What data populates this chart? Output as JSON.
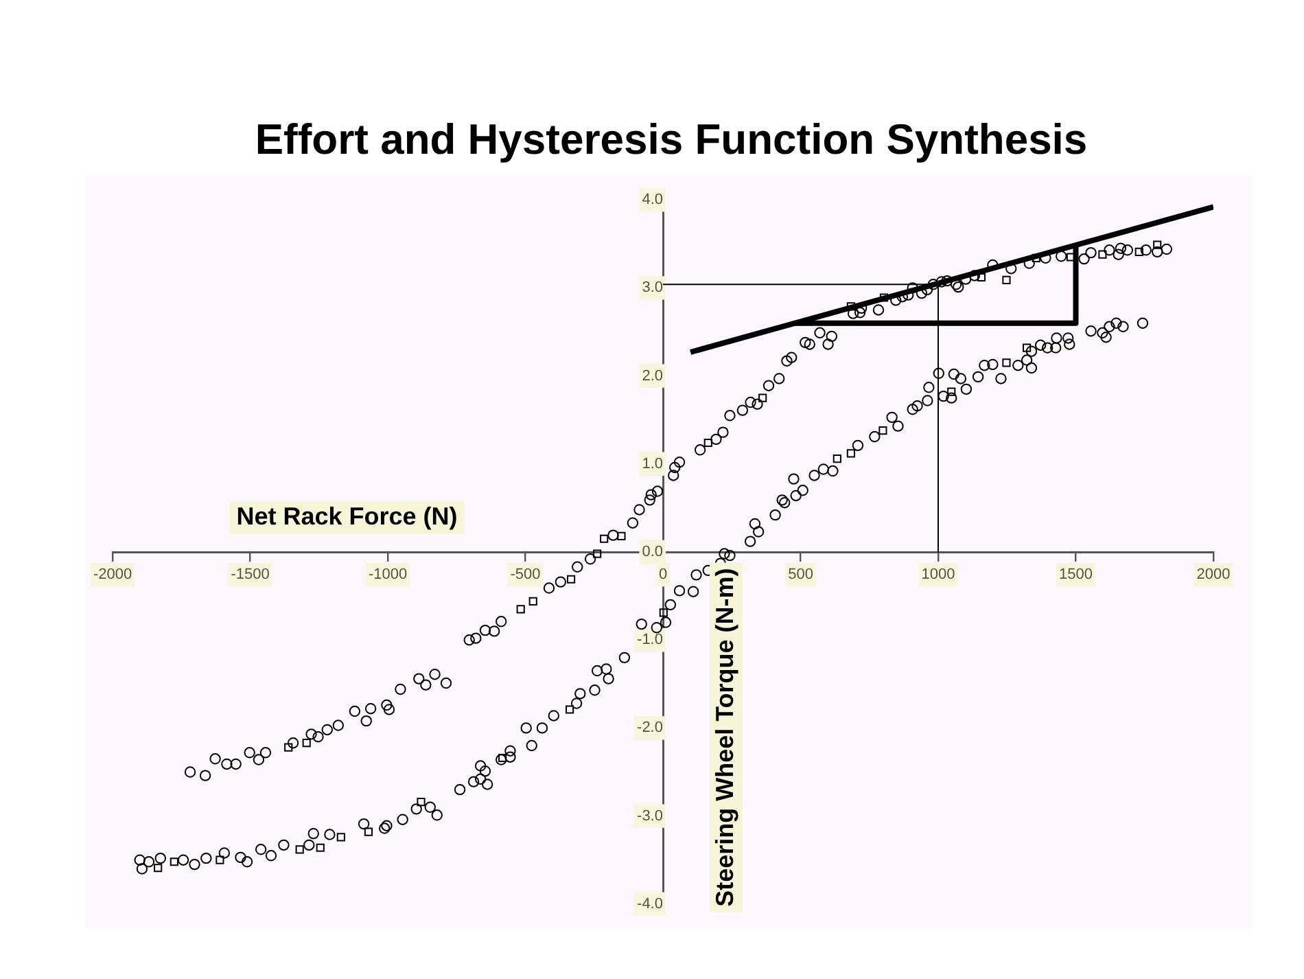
{
  "chart_data": {
    "type": "scatter",
    "title": "Effort and Hysteresis Function Synthesis",
    "xlabel": "Net Rack Force (N)",
    "ylabel": "Steering Wheel Torque (N-m)",
    "xlim": [
      -2000,
      2000
    ],
    "ylim": [
      -4,
      4
    ],
    "xticks": [
      -2000,
      -1500,
      -1000,
      -500,
      0,
      500,
      1000,
      1500,
      2000
    ],
    "yticks": [
      {
        "value": -4,
        "label": "-4.0"
      },
      {
        "value": -3,
        "label": "-3.0"
      },
      {
        "value": -2,
        "label": "-2.0"
      },
      {
        "value": -1,
        "label": "-1.0"
      },
      {
        "value": 0,
        "label": "0.0"
      },
      {
        "value": 1,
        "label": "1.0"
      },
      {
        "value": 2,
        "label": "2.0"
      },
      {
        "value": 3,
        "label": "3.0"
      },
      {
        "value": 4,
        "label": "4.0"
      }
    ],
    "series": [
      {
        "type": "scatter",
        "marker": "circle",
        "color": "#000000",
        "x": [
          -1718,
          -1663,
          -1627,
          -1585,
          -1552,
          -1502,
          -1469,
          -1444,
          -1344,
          -1278,
          -1253,
          -1220,
          -1180,
          -1120,
          -1078,
          -1062,
          -1004,
          -995,
          -954,
          -887,
          -862,
          -829,
          -788,
          -704,
          -680,
          -646,
          -613,
          -588,
          -414,
          -372,
          -311,
          -264,
          -181,
          -110,
          -86,
          -48,
          -43,
          -20,
          38,
          43,
          60,
          135,
          193,
          218,
          243,
          289,
          318,
          343,
          384,
          422,
          450,
          467,
          517,
          533,
          570,
          600,
          613,
          691,
          716,
          721,
          783,
          846,
          870,
          891,
          907,
          940,
          960,
          982,
          1012,
          1032,
          1065,
          1073,
          1100,
          1132,
          1198,
          1265,
          1331,
          1390,
          1447,
          1530,
          1555,
          1622,
          1655,
          1663,
          1688,
          1755,
          1796,
          1830,
          1743,
          1672,
          1647,
          1622,
          1610,
          1597,
          1555,
          1477,
          1472,
          1430,
          1427,
          1397,
          1372,
          1339,
          1339,
          1322,
          1290,
          1228,
          1198,
          1168,
          1145,
          1102,
          1082,
          1057,
          1048,
          1019,
          1002,
          966,
          961,
          924,
          907,
          854,
          832,
          769,
          708,
          617,
          583,
          550,
          508,
          475,
          483,
          442,
          433,
          408,
          347,
          334,
          317,
          243,
          223,
          209,
          164,
          121,
          110,
          60,
          27,
          10,
          -23,
          -78,
          -140,
          -206,
          -239,
          -198,
          -248,
          -301,
          -314,
          -397,
          -439,
          -497,
          -477,
          -555,
          -663,
          -555,
          -588,
          -646,
          -638,
          -663,
          -688,
          -738,
          -821,
          -846,
          -896,
          -946,
          -1004,
          -1012,
          -1087,
          -1211,
          -1270,
          -1286,
          -1378,
          -1424,
          -1461,
          -1511,
          -1535,
          -1594,
          -1660,
          -1702,
          -1743,
          -1826,
          -1868,
          -1893,
          -1901
        ],
        "values": [
          -2.5,
          -2.54,
          -2.35,
          -2.41,
          -2.41,
          -2.28,
          -2.36,
          -2.28,
          -2.17,
          -2.07,
          -2.1,
          -2.02,
          -1.97,
          -1.81,
          -1.92,
          -1.78,
          -1.74,
          -1.79,
          -1.56,
          -1.44,
          -1.51,
          -1.39,
          -1.49,
          -1.0,
          -0.98,
          -0.89,
          -0.9,
          -0.79,
          -0.41,
          -0.34,
          -0.17,
          -0.08,
          0.19,
          0.33,
          0.48,
          0.59,
          0.65,
          0.69,
          0.87,
          0.96,
          1.02,
          1.16,
          1.28,
          1.36,
          1.55,
          1.61,
          1.7,
          1.68,
          1.89,
          1.97,
          2.17,
          2.21,
          2.38,
          2.36,
          2.49,
          2.36,
          2.45,
          2.71,
          2.72,
          2.77,
          2.75,
          2.86,
          2.9,
          2.92,
          3.0,
          2.94,
          2.98,
          3.04,
          3.07,
          3.08,
          3.04,
          3.01,
          3.1,
          3.14,
          3.26,
          3.22,
          3.28,
          3.34,
          3.36,
          3.33,
          3.4,
          3.43,
          3.38,
          3.45,
          3.43,
          3.43,
          3.41,
          3.44,
          2.6,
          2.56,
          2.6,
          2.56,
          2.44,
          2.49,
          2.51,
          2.36,
          2.43,
          2.43,
          2.32,
          2.32,
          2.35,
          2.28,
          2.09,
          2.18,
          2.12,
          1.97,
          2.13,
          2.12,
          1.99,
          1.85,
          1.97,
          2.02,
          1.75,
          1.77,
          2.03,
          1.87,
          1.72,
          1.66,
          1.62,
          1.43,
          1.53,
          1.31,
          1.21,
          0.92,
          0.94,
          0.87,
          0.7,
          0.83,
          0.64,
          0.56,
          0.59,
          0.42,
          0.23,
          0.32,
          0.12,
          -0.04,
          -0.02,
          -0.13,
          -0.21,
          -0.26,
          -0.45,
          -0.44,
          -0.6,
          -0.8,
          -0.86,
          -0.82,
          -1.2,
          -1.33,
          -1.35,
          -1.44,
          -1.57,
          -1.61,
          -1.72,
          -1.86,
          -2.0,
          -2.0,
          -2.2,
          -2.26,
          -2.43,
          -2.33,
          -2.36,
          -2.49,
          -2.64,
          -2.58,
          -2.61,
          -2.7,
          -2.99,
          -2.9,
          -2.92,
          -3.04,
          -3.11,
          -3.14,
          -3.09,
          -3.21,
          -3.2,
          -3.33,
          -3.33,
          -3.45,
          -3.38,
          -3.52,
          -3.47,
          -3.42,
          -3.48,
          -3.55,
          -3.5,
          -3.48,
          -3.52,
          -3.6,
          -3.5
        ]
      },
      {
        "type": "scatter",
        "marker": "square",
        "color": "#000000",
        "x": [
          -1361,
          -1295,
          -517,
          -472,
          -334,
          -239,
          -214,
          -151,
          164,
          362,
          683,
          803,
          1157,
          1248,
          1356,
          1481,
          1597,
          1730,
          1796,
          1322,
          1248,
          1048,
          799,
          683,
          633,
          2,
          -339,
          -583,
          -879,
          -1070,
          -1170,
          -1245,
          -1320,
          -1610,
          -1776,
          -1835
        ],
        "values": [
          -2.22,
          -2.17,
          -0.65,
          -0.56,
          -0.31,
          -0.02,
          0.15,
          0.18,
          1.24,
          1.75,
          2.79,
          2.89,
          3.12,
          3.09,
          3.34,
          3.35,
          3.38,
          3.41,
          3.49,
          2.32,
          2.15,
          1.82,
          1.38,
          1.12,
          1.06,
          -0.69,
          -1.79,
          -2.34,
          -2.84,
          -3.18,
          -3.24,
          -3.36,
          -3.38,
          -3.5,
          -3.52,
          -3.59
        ]
      },
      {
        "type": "line",
        "marker": "none",
        "color": "#000000",
        "x": [
          100,
          2000
        ],
        "values": [
          2.27,
          3.92
        ]
      },
      {
        "type": "line",
        "marker": "none",
        "color": "#000000",
        "x": [
          480,
          1500,
          1500
        ],
        "values": [
          2.6,
          2.6,
          3.49
        ]
      },
      {
        "type": "line",
        "marker": "none",
        "color": "#000000",
        "x": [
          0,
          1000,
          1000
        ],
        "values": [
          3.04,
          3.04,
          0
        ]
      }
    ]
  }
}
